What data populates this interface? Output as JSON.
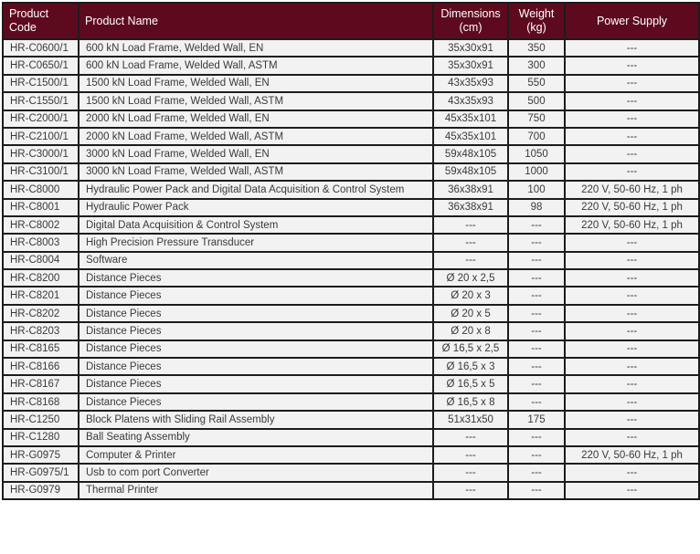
{
  "colors": {
    "header_background": "#5e0a1e",
    "header_text": "#ffffff",
    "row_background": "#f2f2f2",
    "body_text": "#3a3a3a",
    "border": "#1c1c1c"
  },
  "table": {
    "columns": [
      {
        "key": "product_code",
        "label": "Product Code"
      },
      {
        "key": "product_name",
        "label": "Product Name"
      },
      {
        "key": "dimensions",
        "label": "Dimensions (cm)"
      },
      {
        "key": "weight",
        "label": "Weight (kg)"
      },
      {
        "key": "power_supply",
        "label": "Power Supply"
      }
    ],
    "rows": [
      [
        "HR-C0600/1",
        "600 kN Load Frame, Welded Wall, EN",
        "35x30x91",
        "350",
        "---"
      ],
      [
        "HR-C0650/1",
        "600 kN Load Frame, Welded Wall, ASTM",
        "35x30x91",
        "300",
        "---"
      ],
      [
        "HR-C1500/1",
        "1500 kN Load Frame, Welded Wall, EN",
        "43x35x93",
        "550",
        "---"
      ],
      [
        "HR-C1550/1",
        "1500 kN Load Frame, Welded Wall, ASTM",
        "43x35x93",
        "500",
        "---"
      ],
      [
        "HR-C2000/1",
        "2000 kN Load Frame, Welded Wall, EN",
        "45x35x101",
        "750",
        "---"
      ],
      [
        "HR-C2100/1",
        "2000 kN Load Frame, Welded Wall, ASTM",
        "45x35x101",
        "700",
        "---"
      ],
      [
        "HR-C3000/1",
        "3000 kN Load Frame, Welded Wall, EN",
        "59x48x105",
        "1050",
        "---"
      ],
      [
        "HR-C3100/1",
        "3000 kN Load Frame, Welded Wall, ASTM",
        "59x48x105",
        "1000",
        "---"
      ],
      [
        "HR-C8000",
        "Hydraulic Power Pack and Digital Data Acquisition & Control System",
        "36x38x91",
        "100",
        "220 V, 50-60 Hz, 1 ph"
      ],
      [
        "HR-C8001",
        "Hydraulic Power Pack",
        "36x38x91",
        "98",
        "220 V, 50-60 Hz, 1 ph"
      ],
      [
        "HR-C8002",
        "Digital Data Acquisition & Control System",
        "---",
        "---",
        "220 V, 50-60 Hz, 1 ph"
      ],
      [
        "HR-C8003",
        "High Precision Pressure Transducer",
        "---",
        "---",
        "---"
      ],
      [
        "HR-C8004",
        "Software",
        "---",
        "---",
        "---"
      ],
      [
        "HR-C8200",
        "Distance Pieces",
        "Ø 20 x 2,5",
        "---",
        "---"
      ],
      [
        "HR-C8201",
        "Distance Pieces",
        "Ø 20 x 3",
        "---",
        "---"
      ],
      [
        "HR-C8202",
        "Distance Pieces",
        "Ø 20 x 5",
        "---",
        "---"
      ],
      [
        "HR-C8203",
        "Distance Pieces",
        "Ø 20 x 8",
        "---",
        "---"
      ],
      [
        "HR-C8165",
        "Distance Pieces",
        "Ø 16,5 x 2,5",
        "---",
        "---"
      ],
      [
        "HR-C8166",
        "Distance Pieces",
        "Ø 16,5 x 3",
        "---",
        "---"
      ],
      [
        "HR-C8167",
        "Distance Pieces",
        "Ø 16,5 x 5",
        "---",
        "---"
      ],
      [
        "HR-C8168",
        "Distance Pieces",
        "Ø 16,5 x 8",
        "---",
        "---"
      ],
      [
        "HR-C1250",
        "Block Platens with Sliding Rail Assembly",
        "51x31x50",
        "175",
        "---"
      ],
      [
        "HR-C1280",
        "Ball Seating Assembly",
        "---",
        "---",
        "---"
      ],
      [
        "HR-G0975",
        "Computer & Printer",
        "---",
        "---",
        "220 V, 50-60 Hz, 1 ph"
      ],
      [
        "HR-G0975/1",
        "Usb to com port Converter",
        "---",
        "---",
        "---"
      ],
      [
        "HR-G0979",
        "Thermal Printer",
        "---",
        "---",
        "---"
      ]
    ]
  }
}
